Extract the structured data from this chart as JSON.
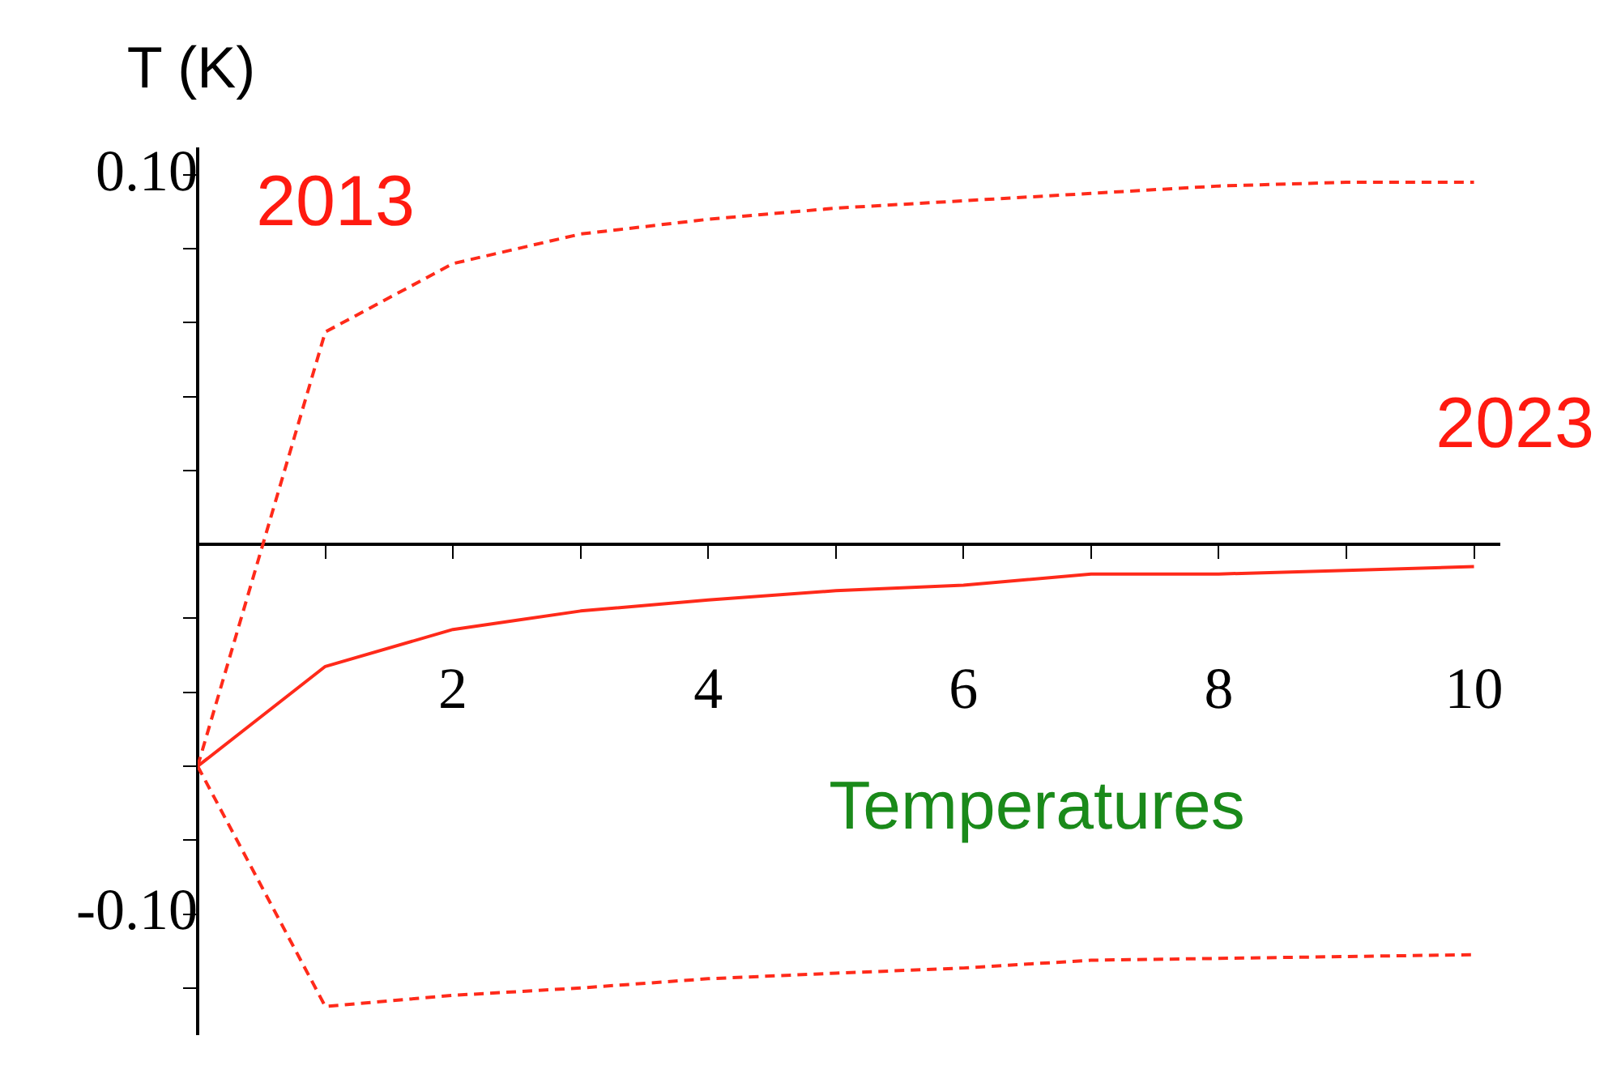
{
  "chart_data": {
    "type": "line",
    "ylabel": "T (K)",
    "x": [
      0,
      1,
      2,
      3,
      4,
      5,
      6,
      7,
      8,
      9,
      10
    ],
    "series": [
      {
        "color": "#ff2a1a",
        "line_style": "solid",
        "values": [
          -0.06,
          -0.033,
          -0.023,
          -0.018,
          -0.015,
          -0.0125,
          -0.011,
          -0.008,
          -0.008,
          -0.007,
          -0.006
        ]
      },
      {
        "color": "#ff2a1a",
        "line_style": "dashed",
        "values": [
          -0.06,
          0.0575,
          0.076,
          0.084,
          0.088,
          0.091,
          0.093,
          0.095,
          0.097,
          0.098,
          0.098
        ]
      },
      {
        "color": "#ff2a1a",
        "line_style": "dashed",
        "values": [
          -0.06,
          -0.125,
          -0.122,
          -0.12,
          -0.1175,
          -0.116,
          -0.1146,
          -0.1125,
          -0.112,
          -0.1115,
          -0.111
        ]
      }
    ],
    "xlim": [
      0,
      10.2
    ],
    "ylim": [
      -0.1325,
      0.107
    ],
    "xticks": [
      {
        "value": 1,
        "label": null
      },
      2,
      {
        "value": 3,
        "label": null
      },
      4,
      {
        "value": 5,
        "label": null
      },
      6,
      {
        "value": 7,
        "label": null
      },
      8,
      {
        "value": 9,
        "label": null
      },
      10
    ],
    "yticks": [
      {
        "value": -0.12,
        "label": null
      },
      {
        "value": -0.1,
        "label": "-0.10"
      },
      {
        "value": -0.08,
        "label": null
      },
      {
        "value": -0.06,
        "label": null
      },
      {
        "value": -0.04,
        "label": null
      },
      {
        "value": -0.02,
        "label": null
      },
      {
        "value": 0.02,
        "label": null
      },
      {
        "value": 0.04,
        "label": null
      },
      {
        "value": 0.06,
        "label": null
      },
      {
        "value": 0.08,
        "label": null
      },
      {
        "value": 0.1,
        "label": "0.10"
      }
    ],
    "grid": false,
    "legend": false,
    "marker": "none",
    "annotations": [
      "2013",
      "2023",
      "Temperatures"
    ]
  }
}
